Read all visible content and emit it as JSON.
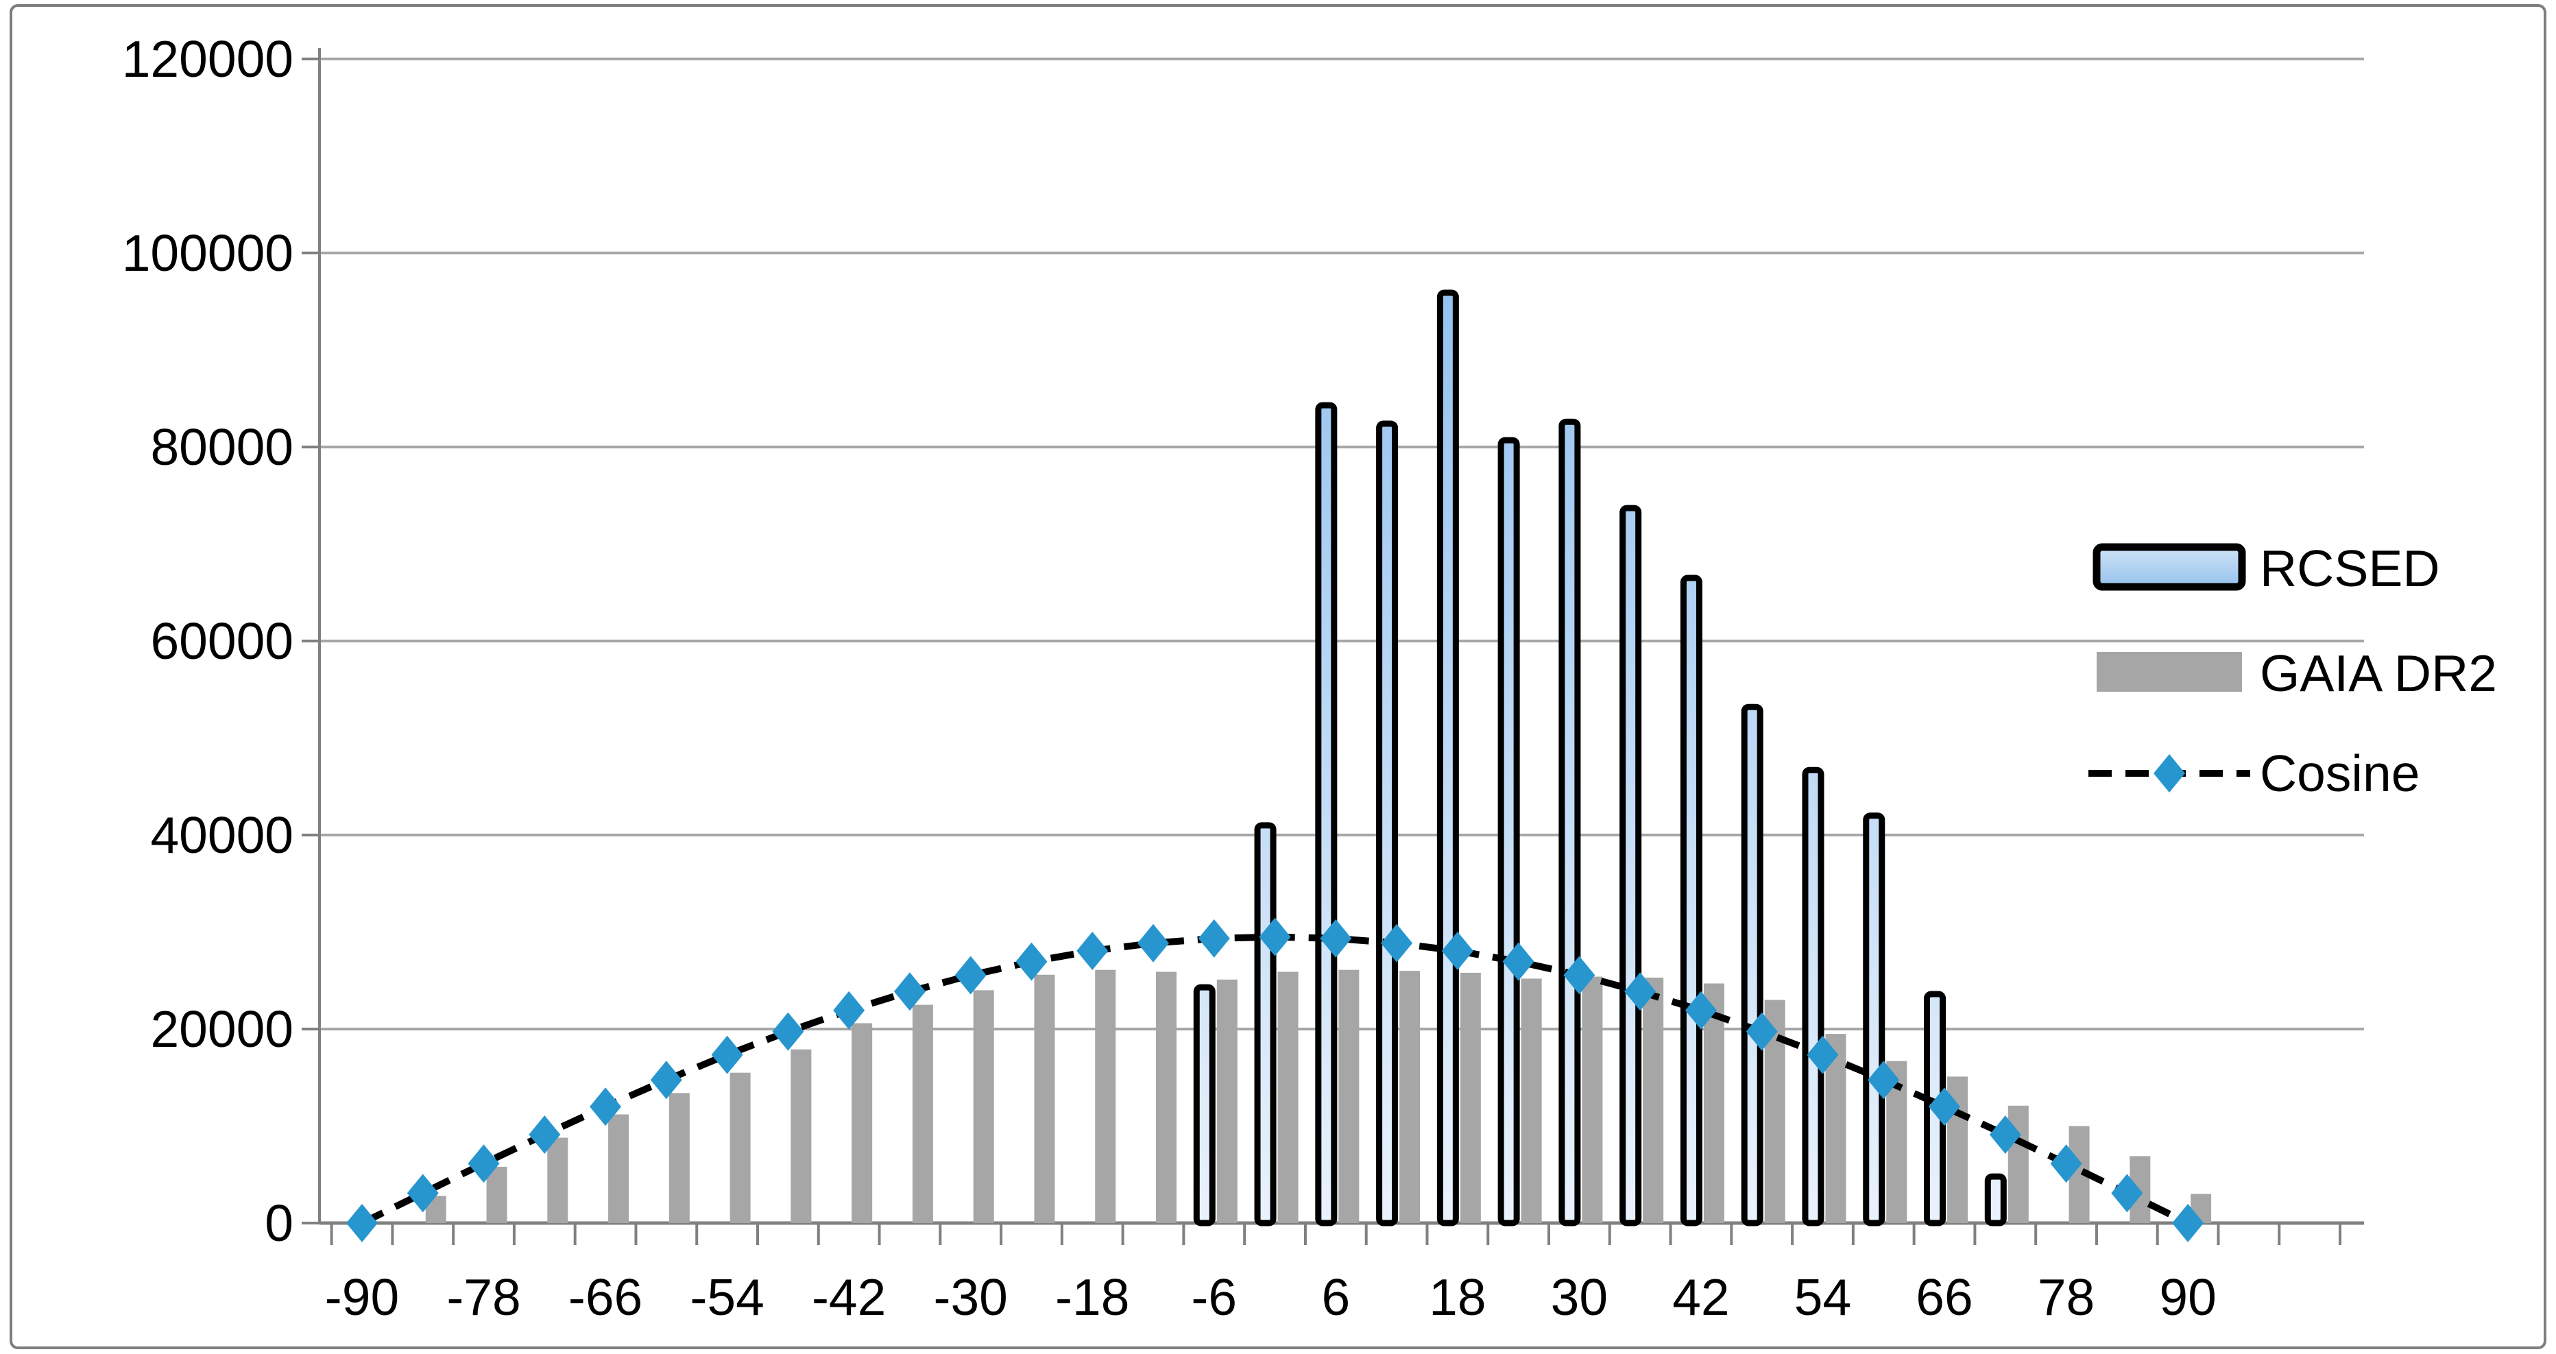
{
  "chart_data": {
    "type": "bar",
    "title": "",
    "xlabel": "",
    "ylabel": "",
    "categories": [
      -90,
      -84,
      -78,
      -72,
      -66,
      -60,
      -54,
      -48,
      -42,
      -36,
      -30,
      -24,
      -18,
      -12,
      -6,
      0,
      6,
      12,
      18,
      24,
      30,
      36,
      42,
      48,
      54,
      60,
      66,
      72,
      78,
      84,
      90
    ],
    "x_labels_shown": [
      "-90",
      "-78",
      "-66",
      "-54",
      "-42",
      "-30",
      "-18",
      "-6",
      "6",
      "18",
      "30",
      "42",
      "54",
      "66",
      "78",
      "90"
    ],
    "y_ticks": [
      0,
      20000,
      40000,
      60000,
      80000,
      100000,
      120000
    ],
    "y_tick_labels": [
      "0",
      "20000",
      "40000",
      "60000",
      "80000",
      "100000",
      "120000"
    ],
    "ylim": [
      0,
      120000
    ],
    "grid": true,
    "legend_position": "right-middle",
    "series": [
      {
        "name": "RCSED",
        "type": "bar",
        "values": [
          0,
          0,
          0,
          0,
          0,
          0,
          0,
          0,
          0,
          0,
          0,
          0,
          0,
          0,
          24300,
          41000,
          84300,
          82400,
          95900,
          80700,
          82600,
          73700,
          66500,
          53200,
          46700,
          42000,
          23600,
          4800,
          0,
          0,
          0
        ]
      },
      {
        "name": "GAIA DR2",
        "type": "bar",
        "values": [
          0,
          2800,
          5800,
          8800,
          11200,
          13400,
          15500,
          17900,
          20600,
          22500,
          24000,
          25600,
          26100,
          25900,
          25100,
          25900,
          26100,
          26000,
          25800,
          25200,
          25400,
          25300,
          24700,
          23000,
          19500,
          16700,
          15100,
          12100,
          10000,
          6900,
          3000
        ]
      },
      {
        "name": "Cosine",
        "type": "line",
        "dashed": true,
        "marker": "diamond",
        "amplitude": 29500,
        "values": [
          0,
          3084,
          6134,
          9117,
          12000,
          14750,
          17341,
          19740,
          21925,
          23868,
          25548,
          26949,
          28057,
          28855,
          29338,
          29500,
          29338,
          28855,
          28057,
          26949,
          25548,
          23868,
          21925,
          19740,
          17341,
          14750,
          12000,
          9117,
          6134,
          3084,
          0
        ]
      }
    ]
  },
  "legend": {
    "items": [
      {
        "label": "RCSED"
      },
      {
        "label": "GAIA DR2"
      },
      {
        "label": "Cosine"
      }
    ]
  },
  "colors": {
    "rcsed_fill_top": "#7FB6EC",
    "rcsed_fill_bottom": "#EAF2FC",
    "rcsed_legend_top": "#CFE3F6",
    "rcsed_legend_bottom": "#96C2ED",
    "rcsed_border": "#000000",
    "gaia_fill": "#A6A6A6",
    "cosine_line": "#000000",
    "cosine_marker": "#2796CF",
    "gridline": "#A6A6A6",
    "axis": "#808080",
    "text": "#000000",
    "canvas_border": "#7E7E7E",
    "background": "#FFFFFF"
  }
}
